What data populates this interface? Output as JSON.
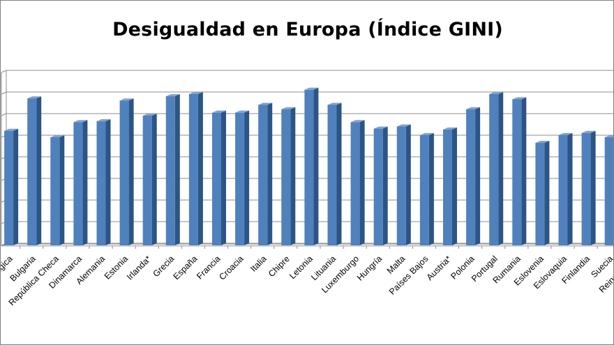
{
  "chart_data": {
    "type": "bar",
    "title": "Desigualdad en Europa (Índice GINI)",
    "xlabel": "",
    "ylabel": "",
    "categories": [
      "Bélgica",
      "Bulgaria",
      "República Checa",
      "Dinamarca",
      "Alemania",
      "Estonia",
      "Irlanda*",
      "Grecia",
      "España",
      "Francia",
      "Croacia",
      "Italia",
      "Chipre",
      "Letonia",
      "Lituania",
      "Luxemburgo",
      "Hungría",
      "Malta",
      "Países Bajos",
      "Austria*",
      "Polonia",
      "Portugal",
      "Rumania",
      "Eslovenia",
      "Eslovaquia",
      "Finlandia",
      "Suecia",
      "Reino Unido"
    ],
    "values": [
      26.5,
      34.0,
      25.0,
      28.5,
      28.7,
      33.5,
      30.0,
      34.5,
      35.0,
      30.7,
      30.7,
      32.5,
      31.5,
      36.0,
      32.5,
      28.5,
      27.0,
      27.5,
      25.5,
      26.8,
      31.5,
      35.0,
      33.8,
      23.7,
      25.5,
      26.0,
      25.0,
      30.0
    ],
    "ylim": [
      0,
      40
    ],
    "ytick_step": 5,
    "y_tick_labels_visible": false,
    "grid": true,
    "legend": "none",
    "colors": {
      "bar_front": "#4f81bd",
      "bar_side": "#2c5485",
      "bar_top": "#7ea3d4",
      "gridline": "#8c8c8c",
      "wall": "#ffffff",
      "frame": "#7f7f7f"
    }
  }
}
